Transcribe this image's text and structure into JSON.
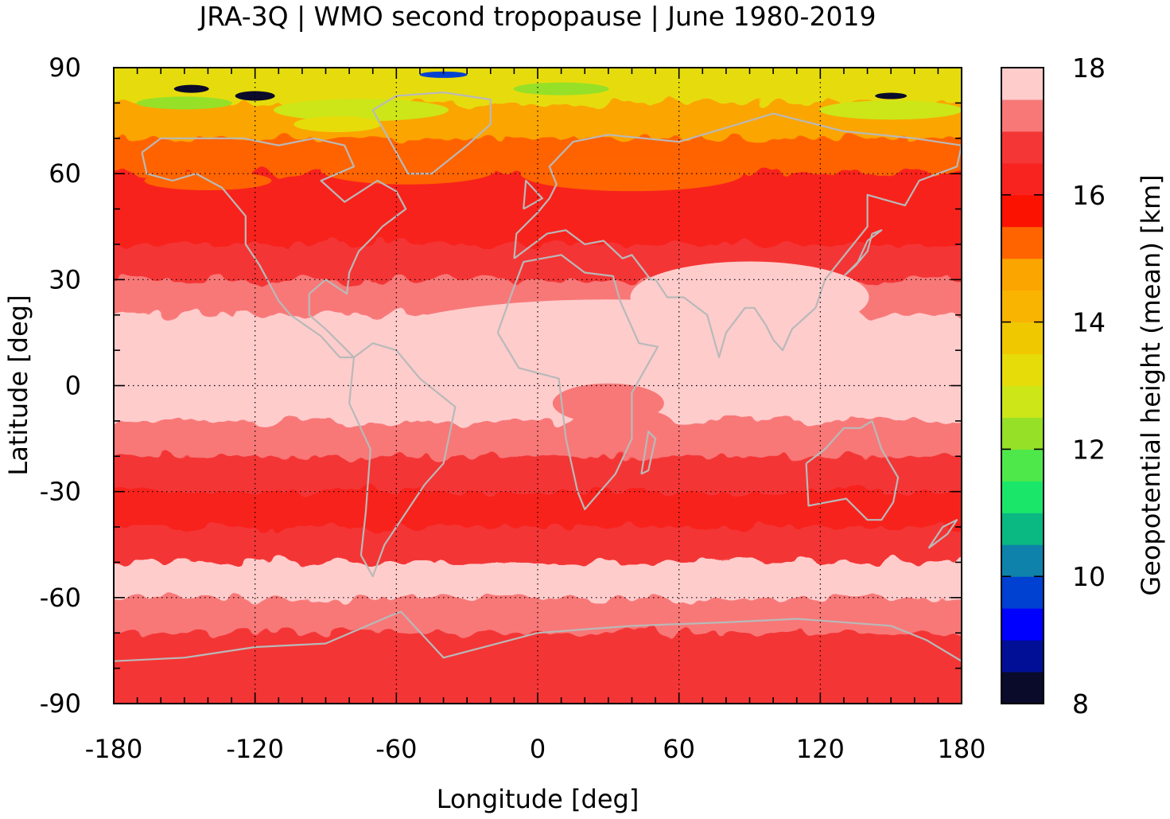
{
  "chart_data": {
    "type": "heatmap",
    "title": "JRA-3Q | WMO second tropopause | June 1980-2019",
    "xlabel": "Longitude [deg]",
    "ylabel": "Latitude [deg]",
    "xlim": [
      -180,
      180
    ],
    "ylim": [
      -90,
      90
    ],
    "x_ticks": [
      "-180",
      "-120",
      "-60",
      "0",
      "60",
      "120",
      "180"
    ],
    "y_ticks": [
      "90",
      "60",
      "30",
      "0",
      "-30",
      "-60",
      "-90"
    ],
    "grid": true,
    "overlay": "coastlines (grey)",
    "colorbar": {
      "label": "Geopotential height (mean) [km]",
      "min": 8,
      "max": 18,
      "step": 0.5,
      "tick_labels": [
        "18",
        "16",
        "14",
        "12",
        "10",
        "8"
      ],
      "colors": [
        "#0a0a2a",
        "#000f96",
        "#0000ff",
        "#0041d2",
        "#0e82aa",
        "#0ab882",
        "#1ae66a",
        "#4ee84a",
        "#96e028",
        "#cce618",
        "#e6dc0a",
        "#f0c800",
        "#f8b400",
        "#fba500",
        "#ff6400",
        "#fc1200",
        "#f8221e",
        "#f43636",
        "#f87878",
        "#ffcccc"
      ]
    },
    "approx_zonal_mean_km": [
      {
        "lat": 85,
        "value": 13.0
      },
      {
        "lat": 75,
        "value": 14.5
      },
      {
        "lat": 65,
        "value": 15.0
      },
      {
        "lat": 55,
        "value": 16.0
      },
      {
        "lat": 45,
        "value": 16.3
      },
      {
        "lat": 35,
        "value": 16.8
      },
      {
        "lat": 25,
        "value": 17.3
      },
      {
        "lat": 15,
        "value": 17.6
      },
      {
        "lat": 5,
        "value": 17.6
      },
      {
        "lat": -5,
        "value": 17.6
      },
      {
        "lat": -15,
        "value": 17.4
      },
      {
        "lat": -25,
        "value": 16.5
      },
      {
        "lat": -35,
        "value": 16.0
      },
      {
        "lat": -45,
        "value": 16.8
      },
      {
        "lat": -55,
        "value": 17.6
      },
      {
        "lat": -65,
        "value": 17.2
      },
      {
        "lat": -75,
        "value": 16.5
      },
      {
        "lat": -85,
        "value": 16.7
      }
    ]
  }
}
